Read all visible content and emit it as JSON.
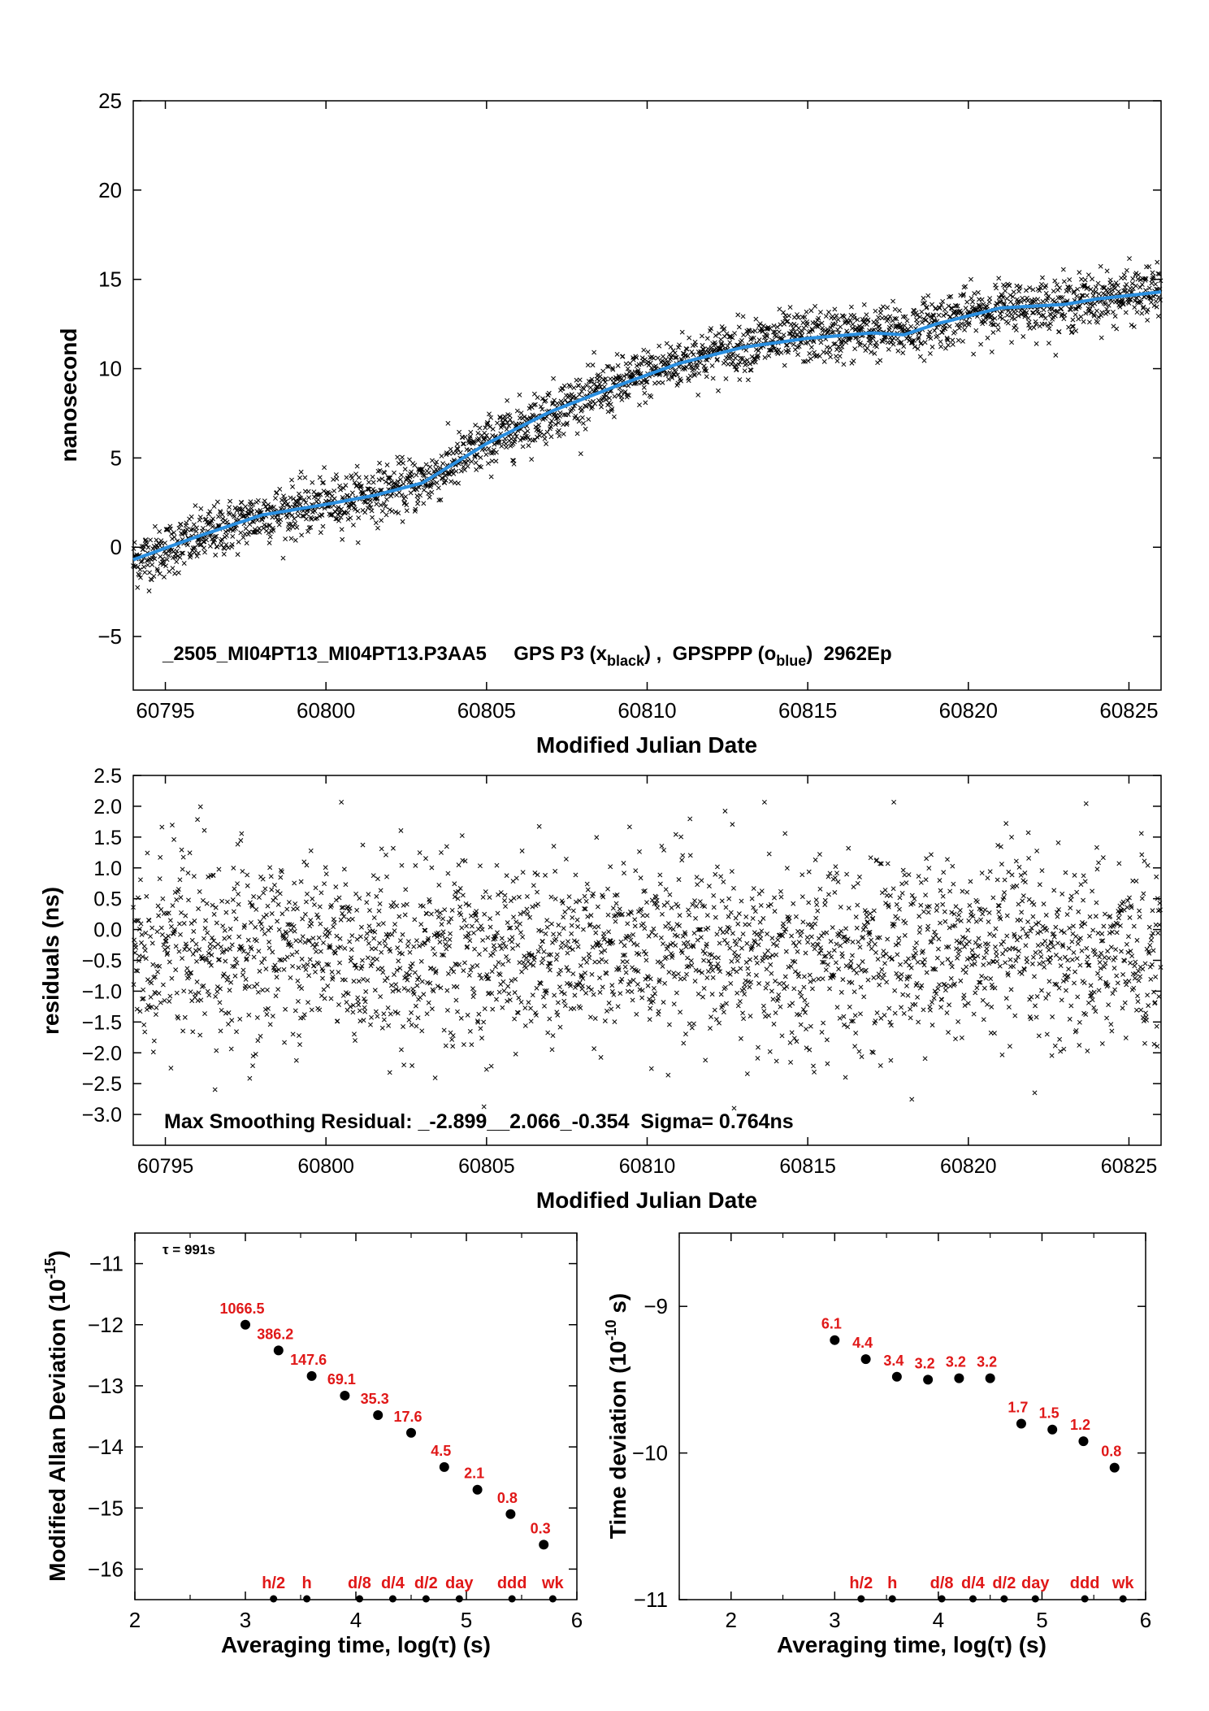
{
  "colors": {
    "smooth_line": "#2a8fe0",
    "label_red": "#e01818",
    "points": "#000000"
  },
  "chart_data": [
    {
      "type": "scatter",
      "id": "timeseries",
      "title": "_2505_MI04PT13_MI04PT13.P3AA5     GPS P3 (x",
      "title_parts": [
        "_2505_MI04PT13_MI04PT13.P3AA5     GPS P3 (x",
        "black",
        ") ,  GPSPPP (o",
        "blue",
        ")  2962Ep"
      ],
      "xlabel": "Modified Julian Date",
      "ylabel": "nanosecond",
      "xlim": [
        60794,
        60826
      ],
      "ylim": [
        -8,
        25
      ],
      "xticks": [
        60795,
        60800,
        60805,
        60810,
        60815,
        60820,
        60825
      ],
      "yticks": [
        -5,
        0,
        5,
        10,
        15,
        20,
        25
      ],
      "series": [
        {
          "marker": "x",
          "color": "#000000",
          "x": [
            60794,
            60796,
            60798,
            60800,
            60801.5,
            60803,
            60805,
            60807,
            60809,
            60811,
            60813,
            60815,
            60817,
            60818,
            60819,
            60821,
            60823,
            60824,
            60826
          ],
          "y": [
            -0.8,
            0.5,
            1.8,
            2.4,
            3.0,
            3.6,
            5.8,
            7.6,
            9.0,
            10.4,
            11.3,
            11.8,
            12.0,
            12.1,
            12.6,
            13.4,
            13.6,
            13.9,
            14.3
          ]
        },
        {
          "marker": "line",
          "color": "#2a8fe0",
          "x": [
            60794,
            60796,
            60798,
            60800,
            60801.5,
            60803,
            60805,
            60807,
            60809,
            60811,
            60813,
            60815,
            60817,
            60818,
            60819,
            60821,
            60823,
            60824,
            60826
          ],
          "y": [
            -0.7,
            0.6,
            1.8,
            2.4,
            2.9,
            3.6,
            5.8,
            7.6,
            9.0,
            10.3,
            11.2,
            11.7,
            12.0,
            11.9,
            12.5,
            13.4,
            13.6,
            13.9,
            14.3
          ]
        }
      ]
    },
    {
      "type": "scatter",
      "id": "residuals",
      "xlabel": "Modified Julian Date",
      "ylabel": "residuals (ns)",
      "xlim": [
        60794,
        60826
      ],
      "ylim": [
        -3.5,
        2.5
      ],
      "xticks": [
        60795,
        60800,
        60805,
        60810,
        60815,
        60820,
        60825
      ],
      "yticks": [
        -3.0,
        -2.5,
        -2.0,
        -1.5,
        -1.0,
        -0.5,
        0.0,
        0.5,
        1.0,
        1.5,
        2.0,
        2.5
      ],
      "ytick_labels": [
        "−3.0",
        "−2.5",
        "−2.0",
        "−1.5",
        "−1.0",
        "−0.5",
        "0.0",
        "0.5",
        "1.0",
        "1.5",
        "2.0",
        "2.5"
      ],
      "annotation": "Max Smoothing Residual: _-2.899__2.066_-0.354  Sigma= 0.764ns",
      "summary": {
        "min": -2.899,
        "max": 2.066,
        "mean": -0.354,
        "sigma_ns": 0.764
      }
    },
    {
      "type": "scatter",
      "id": "mdev",
      "xlabel": "Averaging time, log(τ) (s)",
      "ylabel": "Modified Allan Deviation (10",
      "ylabel_exp": "-15",
      "ylabel_tail": ")",
      "xlim": [
        2,
        6
      ],
      "ylim": [
        -16.5,
        -10.5
      ],
      "xticks": [
        2,
        3,
        4,
        5,
        6
      ],
      "yticks": [
        -16,
        -15,
        -14,
        -13,
        -12,
        -11
      ],
      "ytick_labels": [
        "−16",
        "−15",
        "−14",
        "−13",
        "−12",
        "−11"
      ],
      "tau_note": "τ = 991s",
      "x": [
        3.0,
        3.3,
        3.6,
        3.9,
        4.2,
        4.5,
        4.8,
        5.1,
        5.4,
        5.7
      ],
      "y": [
        -12.0,
        -12.42,
        -12.84,
        -13.16,
        -13.48,
        -13.77,
        -14.33,
        -14.7,
        -15.1,
        -15.6
      ],
      "point_labels": [
        "1066.5",
        "386.2",
        "147.6",
        "69.1",
        "35.3",
        "17.6",
        "4.5",
        "2.1",
        "0.8",
        "0.3"
      ],
      "markers": {
        "labels": [
          "h/2",
          "h",
          "d/8",
          "d/4",
          "d/2",
          "day",
          "ddd",
          "wk"
        ],
        "x": [
          3.255,
          3.556,
          4.033,
          4.334,
          4.635,
          4.936,
          5.413,
          5.782
        ]
      }
    },
    {
      "type": "scatter",
      "id": "tdev",
      "xlabel": "Averaging time, log(τ) (s)",
      "ylabel": "Time deviation (10",
      "ylabel_exp": "-10",
      "ylabel_tail": " s)",
      "xlim": [
        1.5,
        6
      ],
      "ylim": [
        -11,
        -8.5
      ],
      "xticks": [
        2,
        3,
        4,
        5,
        6
      ],
      "yticks": [
        -11,
        -10,
        -9
      ],
      "ytick_labels": [
        "−11",
        "−10",
        "−9"
      ],
      "x": [
        3.0,
        3.3,
        3.6,
        3.9,
        4.2,
        4.5,
        4.8,
        5.1,
        5.4,
        5.7
      ],
      "y": [
        -9.23,
        -9.36,
        -9.48,
        -9.5,
        -9.49,
        -9.49,
        -9.8,
        -9.84,
        -9.92,
        -10.1
      ],
      "point_labels": [
        "6.1",
        "4.4",
        "3.4",
        "3.2",
        "3.2",
        "3.2",
        "1.7",
        "1.5",
        "1.2",
        "0.8"
      ],
      "markers": {
        "labels": [
          "h/2",
          "h",
          "d/8",
          "d/4",
          "d/2",
          "day",
          "ddd",
          "wk"
        ],
        "x": [
          3.255,
          3.556,
          4.033,
          4.334,
          4.635,
          4.936,
          5.413,
          5.782
        ]
      }
    }
  ]
}
